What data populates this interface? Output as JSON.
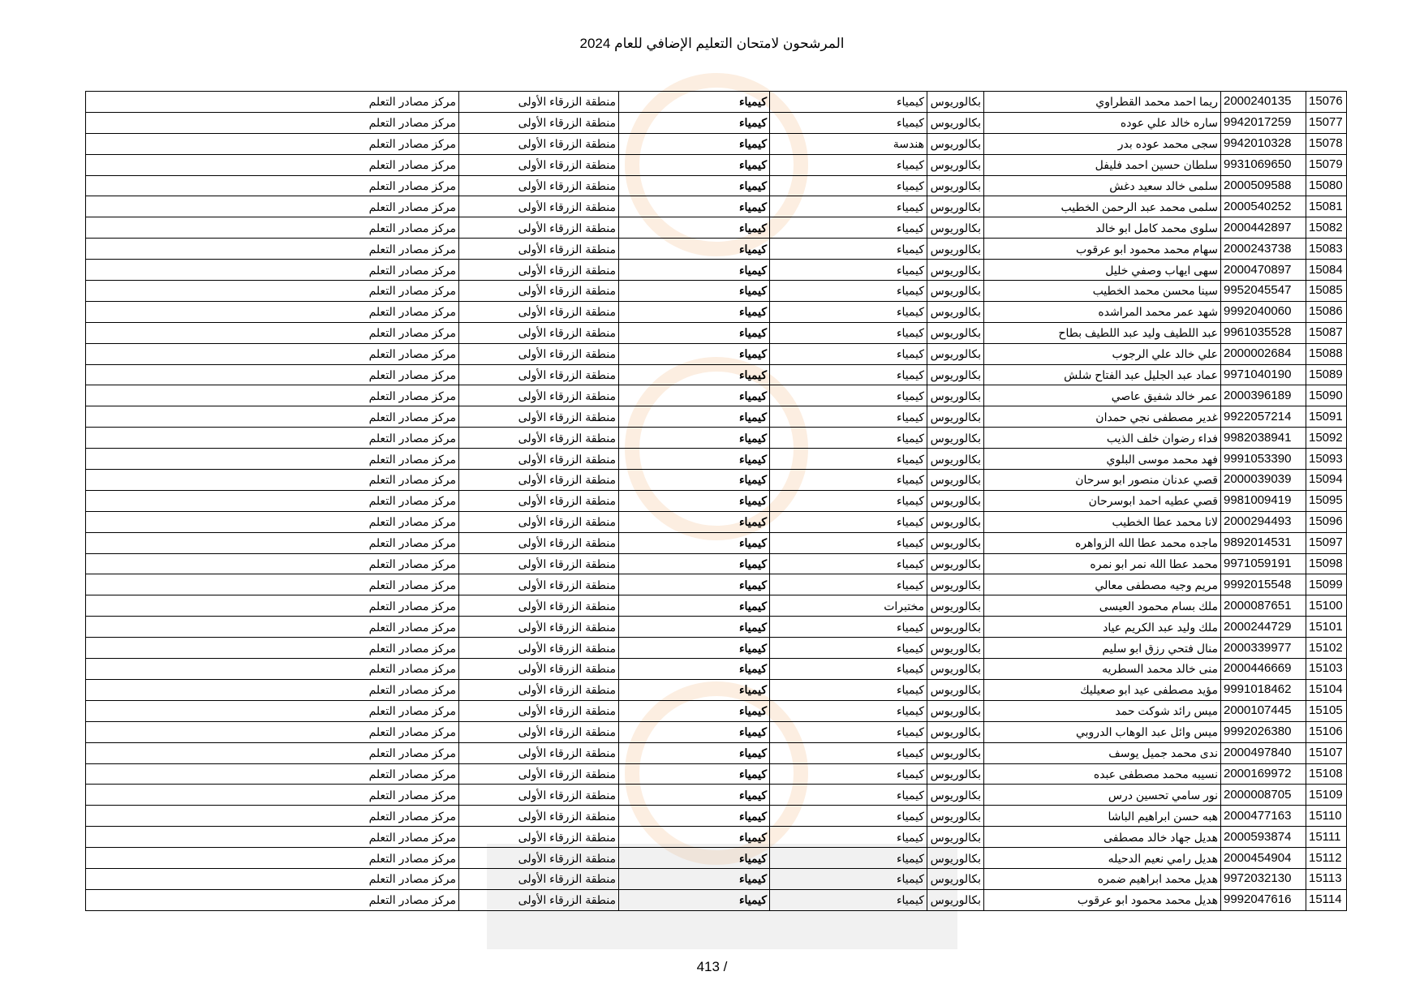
{
  "title": "المرشحون لامتحان التعليم الإضافي للعام 2024",
  "page_number": "413 /",
  "defaults": {
    "degree": "بكالوريوس",
    "specialization": "كيمياء",
    "subject": "كيمياء",
    "region": "منطقة الزرقاء الأولى",
    "center": "مركز مصادر التعلم"
  },
  "rows": [
    {
      "seq": "15076",
      "id": "2000240135",
      "name": "ريما احمد محمد القطراوي"
    },
    {
      "seq": "15077",
      "id": "9942017259",
      "name": "ساره خالد علي عوده"
    },
    {
      "seq": "15078",
      "id": "9942010328",
      "name": "سجى محمد عوده بدر",
      "specialization": "هندسة"
    },
    {
      "seq": "15079",
      "id": "9931069650",
      "name": "سلطان حسين احمد فليفل"
    },
    {
      "seq": "15080",
      "id": "2000509588",
      "name": "سلمى خالد سعيد دغش"
    },
    {
      "seq": "15081",
      "id": "2000540252",
      "name": "سلمى محمد عبد الرحمن الخطيب"
    },
    {
      "seq": "15082",
      "id": "2000442897",
      "name": "سلوى محمد كامل ابو خالد"
    },
    {
      "seq": "15083",
      "id": "2000243738",
      "name": "سهام محمد محمود ابو عرقوب"
    },
    {
      "seq": "15084",
      "id": "2000470897",
      "name": "سهى ايهاب وصفي خليل"
    },
    {
      "seq": "15085",
      "id": "9952045547",
      "name": "سينا محسن محمد الخطيب"
    },
    {
      "seq": "15086",
      "id": "9992040060",
      "name": "شهد عمر محمد المراشده"
    },
    {
      "seq": "15087",
      "id": "9961035528",
      "name": "عبد اللطيف وليد عبد اللطيف بطاح"
    },
    {
      "seq": "15088",
      "id": "2000002684",
      "name": "علي خالد علي الرجوب"
    },
    {
      "seq": "15089",
      "id": "9971040190",
      "name": "عماد عبد الجليل عبد الفتاح شلش"
    },
    {
      "seq": "15090",
      "id": "2000396189",
      "name": "عمر خالد شفيق عاصي"
    },
    {
      "seq": "15091",
      "id": "9922057214",
      "name": "غدير مصطفى نجي حمدان"
    },
    {
      "seq": "15092",
      "id": "9982038941",
      "name": "فداء رضوان خلف الذيب"
    },
    {
      "seq": "15093",
      "id": "9991053390",
      "name": "فهد محمد موسى البلوي"
    },
    {
      "seq": "15094",
      "id": "2000039039",
      "name": "قصي عدنان منصور ابو سرحان"
    },
    {
      "seq": "15095",
      "id": "9981009419",
      "name": "قصي عطيه احمد ابوسرحان"
    },
    {
      "seq": "15096",
      "id": "2000294493",
      "name": "لانا محمد عطا الخطيب"
    },
    {
      "seq": "15097",
      "id": "9892014531",
      "name": "ماجده محمد عطا الله الزواهره"
    },
    {
      "seq": "15098",
      "id": "9971059191",
      "name": "محمد عطا الله نمر ابو نمره"
    },
    {
      "seq": "15099",
      "id": "9992015548",
      "name": "مريم وجيه مصطفى معالي"
    },
    {
      "seq": "15100",
      "id": "2000087651",
      "name": "ملك بسام محمود العيسى",
      "specialization": "مختبرات"
    },
    {
      "seq": "15101",
      "id": "2000244729",
      "name": "ملك وليد عبد الكريم عياد"
    },
    {
      "seq": "15102",
      "id": "2000339977",
      "name": "منال فتحي رزق ابو سليم"
    },
    {
      "seq": "15103",
      "id": "2000446669",
      "name": "منى خالد محمد السطريه"
    },
    {
      "seq": "15104",
      "id": "9991018462",
      "name": "مؤيد مصطفى عيد ابو صعيليك"
    },
    {
      "seq": "15105",
      "id": "2000107445",
      "name": "ميس رائد شوكت حمد"
    },
    {
      "seq": "15106",
      "id": "9992026380",
      "name": "ميس وائل عبد الوهاب الدروبي"
    },
    {
      "seq": "15107",
      "id": "2000497840",
      "name": "ندى محمد جميل يوسف"
    },
    {
      "seq": "15108",
      "id": "2000169972",
      "name": "نسيبه محمد مصطفى عبده"
    },
    {
      "seq": "15109",
      "id": "2000008705",
      "name": "نور سامي تحسين درس"
    },
    {
      "seq": "15110",
      "id": "2000477163",
      "name": "هبه حسن ابراهيم الباشا"
    },
    {
      "seq": "15111",
      "id": "2000593874",
      "name": "هديل جهاد خالد مصطفى"
    },
    {
      "seq": "15112",
      "id": "2000454904",
      "name": "هديل رامي نعيم الدحيله"
    },
    {
      "seq": "15113",
      "id": "9972032130",
      "name": "هديل محمد ابراهيم ضمره"
    },
    {
      "seq": "15114",
      "id": "9992047616",
      "name": "هديل محمد محمود ابو عرقوب"
    }
  ]
}
